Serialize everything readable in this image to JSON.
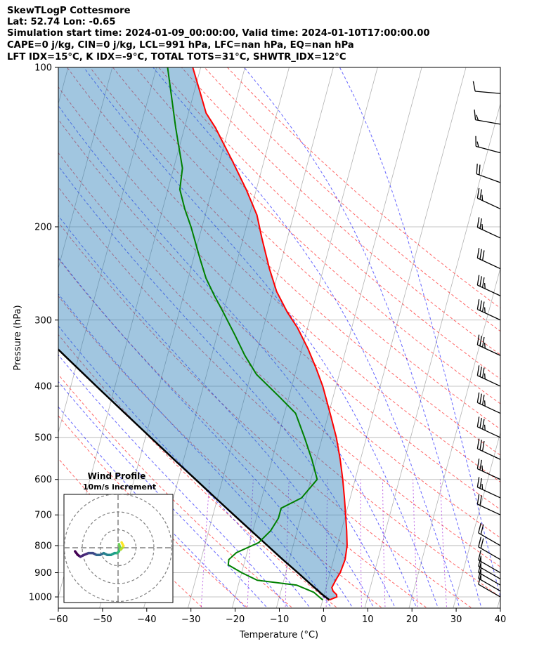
{
  "header": {
    "title": "SkewTLogP Cottesmore",
    "location": "Lat: 52.74   Lon: -0.65",
    "times": "Simulation start time: 2024-01-09_00:00:00, Valid time: 2024-01-10T17:00:00.00",
    "params": "CAPE=0 j/kg, CIN=0 j/kg, LCL=991 hPa, LFC=nan hPa, EQ=nan hPa",
    "indices": "LFT IDX=15°C, K IDX=-9°C, TOTAL TOTS=31°C, SHWTR_IDX=12°C"
  },
  "chart_data": {
    "type": "line",
    "subtype": "skew-t log-p",
    "xlabel": "Temperature (°C)",
    "ylabel": "Pressure (hPa)",
    "xlim": [
      -60,
      40
    ],
    "ylim": [
      1050,
      100
    ],
    "x_ticks": [
      -60,
      -50,
      -40,
      -30,
      -20,
      -10,
      0,
      10,
      20,
      30,
      40
    ],
    "x_tick_labels": [
      "−60",
      "−50",
      "−40",
      "−30",
      "−20",
      "−10",
      "0",
      "10",
      "20",
      "30",
      "40"
    ],
    "y_ticks": [
      1000,
      900,
      800,
      700,
      600,
      500,
      400,
      300,
      200,
      100
    ],
    "y_tick_labels": [
      "1000",
      "900",
      "800",
      "700",
      "600",
      "500",
      "400",
      "300",
      "200",
      "100"
    ],
    "colors": {
      "temperature": "#ff0000",
      "dewpoint": "#008000",
      "parcel": "#000000",
      "cin_fill": "#1f77b4",
      "dry_adiabat": "#ff0000",
      "moist_adiabat": "#0000ff",
      "mixing_ratio": "#9400d3",
      "isotherm": "#808080",
      "grid": "#b0b0b0"
    },
    "series": [
      {
        "name": "Temperature",
        "points": [
          [
            1013,
            1.5
          ],
          [
            1000,
            3.0
          ],
          [
            990,
            2.8
          ],
          [
            975,
            1.8
          ],
          [
            960,
            1.3
          ],
          [
            925,
            1.8
          ],
          [
            900,
            2.3
          ],
          [
            850,
            2.6
          ],
          [
            800,
            2.2
          ],
          [
            750,
            1.2
          ],
          [
            700,
            0.0
          ],
          [
            650,
            -1.3
          ],
          [
            600,
            -2.8
          ],
          [
            550,
            -4.6
          ],
          [
            500,
            -6.8
          ],
          [
            450,
            -9.7
          ],
          [
            400,
            -13.0
          ],
          [
            370,
            -15.6
          ],
          [
            340,
            -18.6
          ],
          [
            310,
            -22.3
          ],
          [
            290,
            -25.5
          ],
          [
            265,
            -29.2
          ],
          [
            240,
            -32.2
          ],
          [
            210,
            -35.8
          ],
          [
            190,
            -38.3
          ],
          [
            170,
            -42.3
          ],
          [
            150,
            -47.2
          ],
          [
            140,
            -50.0
          ],
          [
            130,
            -53.0
          ],
          [
            122,
            -56.0
          ],
          [
            110,
            -59.0
          ],
          [
            100,
            -61.8
          ]
        ]
      },
      {
        "name": "Dewpoint",
        "points": [
          [
            1013,
            0.0
          ],
          [
            1000,
            -1.0
          ],
          [
            980,
            -2.5
          ],
          [
            950,
            -6.8
          ],
          [
            930,
            -16.0
          ],
          [
            900,
            -20.0
          ],
          [
            870,
            -23.5
          ],
          [
            850,
            -23.7
          ],
          [
            825,
            -22.4
          ],
          [
            790,
            -18.0
          ],
          [
            750,
            -16.0
          ],
          [
            710,
            -15.0
          ],
          [
            680,
            -15.0
          ],
          [
            650,
            -11.0
          ],
          [
            600,
            -8.6
          ],
          [
            550,
            -11.0
          ],
          [
            500,
            -14.0
          ],
          [
            450,
            -17.5
          ],
          [
            420,
            -22.0
          ],
          [
            380,
            -28.7
          ],
          [
            350,
            -32.5
          ],
          [
            320,
            -36.0
          ],
          [
            290,
            -40.0
          ],
          [
            270,
            -43.0
          ],
          [
            250,
            -46.0
          ],
          [
            230,
            -48.5
          ],
          [
            200,
            -52.5
          ],
          [
            185,
            -55.0
          ],
          [
            170,
            -57.3
          ],
          [
            155,
            -58.0
          ],
          [
            130,
            -62.0
          ],
          [
            100,
            -67.5
          ]
        ]
      },
      {
        "name": "Parcel",
        "points": [
          [
            1013,
            1.5
          ],
          [
            991,
            -0.3
          ],
          [
            950,
            -3.4
          ],
          [
            900,
            -7.3
          ],
          [
            850,
            -11.5
          ],
          [
            800,
            -15.8
          ],
          [
            750,
            -20.4
          ],
          [
            700,
            -25.3
          ],
          [
            650,
            -30.5
          ],
          [
            600,
            -36.1
          ],
          [
            550,
            -42.2
          ],
          [
            500,
            -48.8
          ],
          [
            450,
            -56.1
          ],
          [
            400,
            -64.2
          ],
          [
            350,
            -73.3
          ],
          [
            300,
            -83.7
          ],
          [
            250,
            -95.9
          ],
          [
            200,
            -110.6
          ],
          [
            150,
            -129.3
          ],
          [
            100,
            -155.2
          ]
        ]
      }
    ],
    "wind_barbs": [
      {
        "p": 1000,
        "spd_kt": 10,
        "dir": 300
      },
      {
        "p": 975,
        "spd_kt": 15,
        "dir": 300
      },
      {
        "p": 950,
        "spd_kt": 15,
        "dir": 300
      },
      {
        "p": 925,
        "spd_kt": 15,
        "dir": 300
      },
      {
        "p": 900,
        "spd_kt": 15,
        "dir": 300
      },
      {
        "p": 850,
        "spd_kt": 20,
        "dir": 300
      },
      {
        "p": 800,
        "spd_kt": 20,
        "dir": 300
      },
      {
        "p": 700,
        "spd_kt": 20,
        "dir": 295
      },
      {
        "p": 650,
        "spd_kt": 25,
        "dir": 295
      },
      {
        "p": 600,
        "spd_kt": 25,
        "dir": 295
      },
      {
        "p": 550,
        "spd_kt": 30,
        "dir": 295
      },
      {
        "p": 500,
        "spd_kt": 35,
        "dir": 295
      },
      {
        "p": 450,
        "spd_kt": 35,
        "dir": 295
      },
      {
        "p": 400,
        "spd_kt": 35,
        "dir": 295
      },
      {
        "p": 350,
        "spd_kt": 35,
        "dir": 295
      },
      {
        "p": 300,
        "spd_kt": 35,
        "dir": 295
      },
      {
        "p": 270,
        "spd_kt": 35,
        "dir": 295
      },
      {
        "p": 240,
        "spd_kt": 30,
        "dir": 295
      },
      {
        "p": 210,
        "spd_kt": 25,
        "dir": 295
      },
      {
        "p": 185,
        "spd_kt": 25,
        "dir": 295
      },
      {
        "p": 165,
        "spd_kt": 20,
        "dir": 290
      },
      {
        "p": 145,
        "spd_kt": 15,
        "dir": 285
      },
      {
        "p": 128,
        "spd_kt": 15,
        "dir": 280
      },
      {
        "p": 112,
        "spd_kt": 10,
        "dir": 275
      }
    ],
    "hodograph": {
      "title": "Wind Profile",
      "subtitle": "10m/s increment",
      "rings_ms": [
        10,
        20,
        30
      ],
      "points": [
        [
          -48,
          2
        ],
        [
          -45,
          4
        ],
        [
          -42,
          5
        ],
        [
          -38,
          4
        ],
        [
          -33,
          3
        ],
        [
          -28,
          3
        ],
        [
          -24,
          4
        ],
        [
          -20,
          4
        ],
        [
          -16,
          3
        ],
        [
          -12,
          4
        ],
        [
          -8,
          4
        ],
        [
          -4,
          3
        ],
        [
          -1,
          3
        ],
        [
          1,
          2
        ],
        [
          2,
          0
        ],
        [
          1,
          -2
        ],
        [
          3,
          1
        ],
        [
          5,
          0
        ],
        [
          6,
          -1
        ],
        [
          4,
          -3
        ]
      ]
    }
  }
}
